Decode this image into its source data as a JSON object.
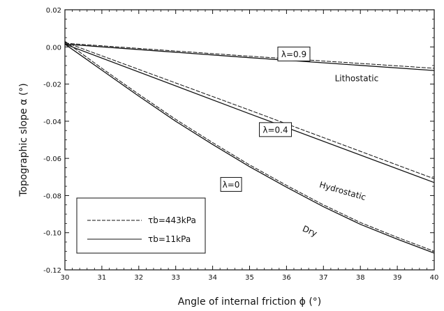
{
  "chart_data": {
    "type": "line",
    "xlabel": "Angle of internal friction ϕ (°)",
    "ylabel": "Topographic slope α (°)",
    "xlim": [
      30,
      40
    ],
    "ylim": [
      -0.12,
      0.02
    ],
    "x_ticks": [
      "30",
      "31",
      "32",
      "33",
      "34",
      "35",
      "36",
      "37",
      "38",
      "39",
      "40"
    ],
    "y_ticks": [
      "0.02",
      "0.00",
      "-0.02",
      "-0.04",
      "-0.06",
      "-0.08",
      "-0.10",
      "-0.12"
    ],
    "grid": false,
    "legend_position": "bottom-left",
    "legend": [
      {
        "label": "τb=443kPa",
        "style": "dashed"
      },
      {
        "label": "τb=11kPa",
        "style": "solid"
      }
    ],
    "series": [
      {
        "group": "λ=0.9",
        "style": "dashed",
        "x": [
          30,
          35,
          40
        ],
        "y": [
          0.002,
          -0.005,
          -0.0115
        ]
      },
      {
        "group": "λ=0.9",
        "style": "solid",
        "x": [
          30,
          35,
          40
        ],
        "y": [
          0.0015,
          -0.0058,
          -0.0127
        ]
      },
      {
        "group": "λ=0.4",
        "style": "dashed",
        "x": [
          30,
          35,
          40
        ],
        "y": [
          0.0025,
          -0.034,
          -0.071
        ]
      },
      {
        "group": "λ=0.4",
        "style": "solid",
        "x": [
          30,
          35,
          40
        ],
        "y": [
          0.0015,
          -0.036,
          -0.073
        ]
      },
      {
        "group": "λ=0",
        "style": "dashed",
        "x": [
          30,
          31,
          32,
          33,
          34,
          35,
          36,
          37,
          38,
          39,
          40
        ],
        "y": [
          0.003,
          -0.0115,
          -0.0255,
          -0.039,
          -0.0515,
          -0.0635,
          -0.0745,
          -0.085,
          -0.0945,
          -0.1025,
          -0.11
        ]
      },
      {
        "group": "λ=0",
        "style": "solid",
        "x": [
          30,
          31,
          32,
          33,
          34,
          35,
          36,
          37,
          38,
          39,
          40
        ],
        "y": [
          0.0015,
          -0.0125,
          -0.0265,
          -0.04,
          -0.0525,
          -0.0645,
          -0.0755,
          -0.086,
          -0.0955,
          -0.1035,
          -0.111
        ]
      }
    ],
    "curve_labels": [
      {
        "text": "λ=0.9",
        "boxed": true,
        "x": 36.2,
        "y": -0.0038
      },
      {
        "text": "λ=0.4",
        "boxed": true,
        "x": 35.7,
        "y": -0.0445
      },
      {
        "text": "λ=0",
        "boxed": true,
        "x": 34.5,
        "y": -0.074
      },
      {
        "text": "Lithostatic",
        "boxed": false,
        "x": 37.9,
        "y": -0.0185
      },
      {
        "text": "Hydrostatic",
        "boxed": false,
        "x": 37.5,
        "y": -0.079
      },
      {
        "text": "Dry",
        "boxed": false,
        "x": 36.6,
        "y": -0.1005
      }
    ]
  }
}
